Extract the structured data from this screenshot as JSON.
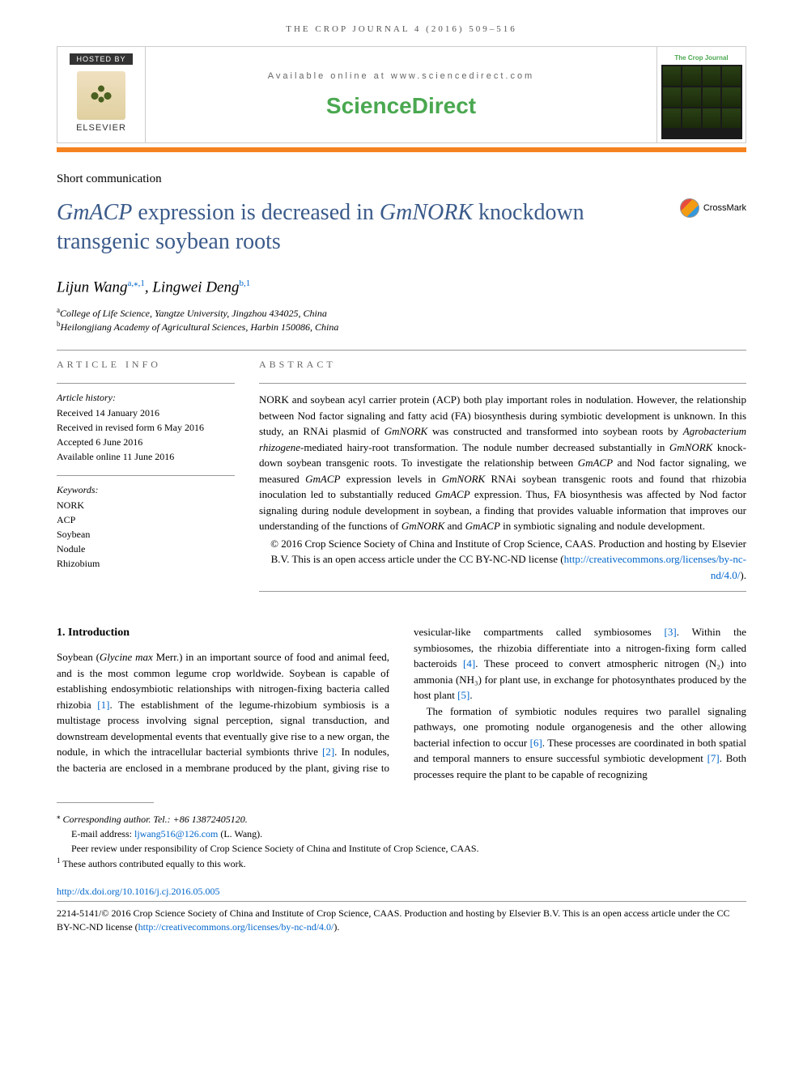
{
  "journal_ref": "THE CROP JOURNAL 4 (2016) 509–516",
  "hosted_by_label": "HOSTED BY",
  "elsevier_text": "ELSEVIER",
  "available_text": "Available online at www.sciencedirect.com",
  "sciencedirect_text": "ScienceDirect",
  "journal_cover_title": "The Crop Journal",
  "article_type": "Short communication",
  "title_html": "<em>GmACP</em> expression is decreased in <em>GmNORK</em> knockdown transgenic soybean roots",
  "crossmark_label": "CrossMark",
  "authors_html": "Lijun Wang<sup><a>a</a>,⁎,1</sup>, Lingwei Deng<sup><a>b</a>,1</sup>",
  "affiliations": [
    {
      "sup": "a",
      "text": "College of Life Science, Yangtze University, Jingzhou 434025, China"
    },
    {
      "sup": "b",
      "text": "Heilongjiang Academy of Agricultural Sciences, Harbin 150086, China"
    }
  ],
  "article_info_heading": "ARTICLE INFO",
  "history_label": "Article history:",
  "history": [
    "Received 14 January 2016",
    "Received in revised form 6 May 2016",
    "Accepted 6 June 2016",
    "Available online 11 June 2016"
  ],
  "keywords_label": "Keywords:",
  "keywords": [
    "NORK",
    "ACP",
    "Soybean",
    "Nodule",
    "Rhizobium"
  ],
  "abstract_heading": "ABSTRACT",
  "abstract_html": "NORK and soybean acyl carrier protein (ACP) both play important roles in nodulation. However, the relationship between Nod factor signaling and fatty acid (FA) biosynthesis during symbiotic development is unknown. In this study, an RNAi plasmid of <em>GmNORK</em> was constructed and transformed into soybean roots by <em>Agrobacterium rhizogene</em>-mediated hairy-root transformation. The nodule number decreased substantially in <em>GmNORK</em> knock-down soybean transgenic roots. To investigate the relationship between <em>GmACP</em> and Nod factor signaling, we measured <em>GmACP</em> expression levels in <em>GmNORK</em> RNAi soybean transgenic roots and found that rhizobia inoculation led to substantially reduced <em>GmACP</em> expression. Thus, FA biosynthesis was affected by Nod factor signaling during nodule development in soybean, a finding that provides valuable information that improves our understanding of the functions of <em>GmNORK</em> and <em>GmACP</em> in symbiotic signaling and nodule development.",
  "copyright_abstract_html": "© 2016 Crop Science Society of China and Institute of Crop Science, CAAS. Production and hosting by Elsevier B.V. This is an open access article under the CC BY-NC-ND license (<a>http://creativecommons.org/licenses/by-nc-nd/4.0/</a>).",
  "intro_heading": "1. Introduction",
  "intro_para1_html": "Soybean (<em>Glycine max</em> Merr.) in an important source of food and animal feed, and is the most common legume crop worldwide. Soybean is capable of establishing endosymbiotic relationships with nitrogen-fixing bacteria called rhizobia <a>[1]</a>. The establishment of the legume-rhizobium symbiosis is a multistage process involving signal perception, signal transduction, and downstream developmental events that eventually give rise to a new organ, the nodule, in which the intracellular bacterial symbionts thrive <a>[2]</a>. In nodules, the bacteria are enclosed in a membrane produced by the plant, giving rise to vesicular-like compartments called symbiosomes <a>[3]</a>. Within the symbiosomes, the rhizobia differentiate into a nitrogen-fixing form called bacteroids <a>[4]</a>. These proceed to convert atmospheric nitrogen (N₂) into ammonia (NH₃) for plant use, in exchange for photosynthates produced by the host plant <a>[5]</a>.",
  "intro_para2_html": "The formation of symbiotic nodules requires two parallel signaling pathways, one promoting nodule organogenesis and the other allowing bacterial infection to occur <a>[6]</a>. These processes are coordinated in both spatial and temporal manners to ensure successful symbiotic development <a>[7]</a>. Both processes require the plant to be capable of recognizing",
  "footnotes": {
    "corresponding": "Corresponding author. Tel.: +86 13872405120.",
    "email_label": "E-mail address:",
    "email": "ljwang516@126.com",
    "email_author": "(L. Wang).",
    "peer_review": "Peer review under responsibility of Crop Science Society of China and Institute of Crop Science, CAAS.",
    "contrib": "These authors contributed equally to this work."
  },
  "doi": "http://dx.doi.org/10.1016/j.cj.2016.05.005",
  "footer_copyright_html": "2214-5141/© 2016 Crop Science Society of China and Institute of Crop Science, CAAS. Production and hosting by Elsevier B.V. This is an open access article under the CC BY-NC-ND license (<a>http://creativecommons.org/licenses/by-nc-nd/4.0/</a>).",
  "colors": {
    "title_color": "#3a5a8a",
    "link_color": "#0066cc",
    "orange_bar": "#f58220",
    "sciencedirect_green": "#4aa850"
  }
}
